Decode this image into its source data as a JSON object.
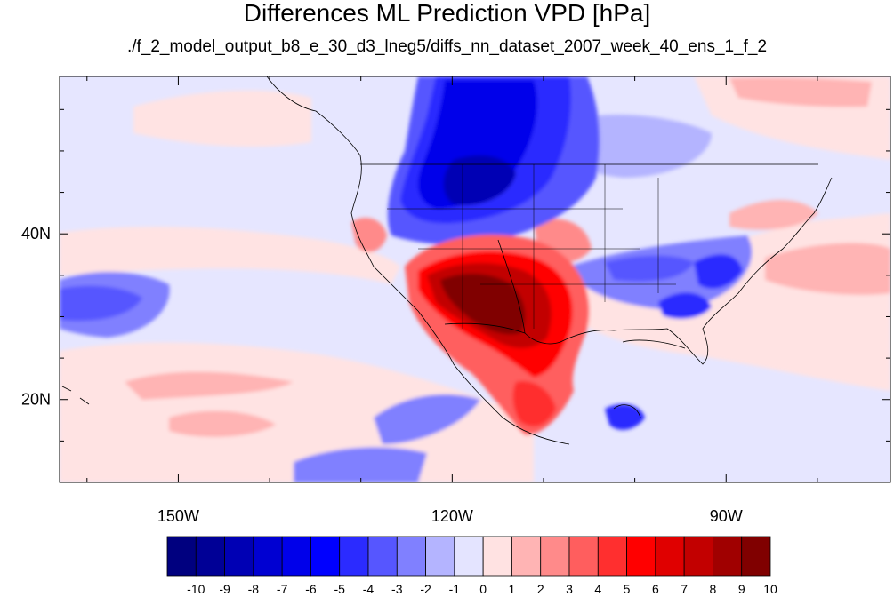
{
  "title": "Differences ML Prediction VPD [hPa]",
  "subtitle": "./f_2_model_output_b8_e_30_d3_lneg5/diffs_nn_dataset_2007_week_40_ens_1_f_2",
  "map": {
    "lon_range": [
      -163,
      -72
    ],
    "lat_range": [
      10,
      59
    ],
    "x_ticks": [
      {
        "value": -150,
        "label": "150W"
      },
      {
        "value": -120,
        "label": "120W"
      },
      {
        "value": -90,
        "label": "90W"
      }
    ],
    "y_ticks": [
      {
        "value": 40,
        "label": "40N"
      },
      {
        "value": 20,
        "label": "20N"
      }
    ]
  },
  "colorbar": {
    "levels": [
      "-10",
      "-9",
      "-8",
      "-7",
      "-6",
      "-5",
      "-4",
      "-3",
      "-2",
      "-1",
      "0",
      "1",
      "2",
      "3",
      "4",
      "5",
      "6",
      "7",
      "8",
      "9",
      "10"
    ],
    "colors": [
      "#00007f",
      "#000096",
      "#0000b4",
      "#0000d2",
      "#0000ea",
      "#0000ff",
      "#2b2bff",
      "#5656ff",
      "#8080ff",
      "#b4b4ff",
      "#e4e4ff",
      "#ffe2e2",
      "#ffb4b4",
      "#ff8a8a",
      "#ff5e5e",
      "#ff2f2f",
      "#ff0000",
      "#e00000",
      "#c20000",
      "#a00000",
      "#800000"
    ]
  }
}
